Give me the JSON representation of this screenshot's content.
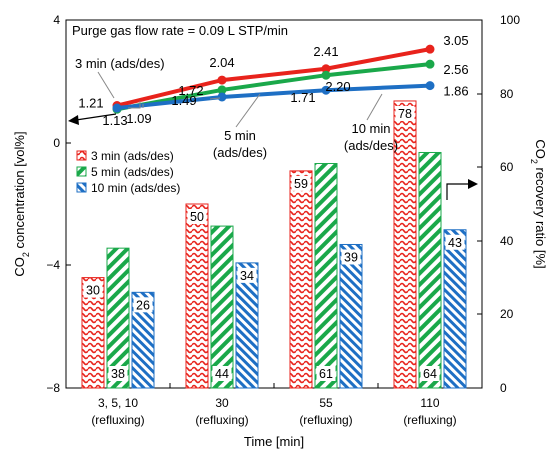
{
  "chart_data": {
    "type": "bar+line",
    "title": "Purge gas flow rate = 0.09 L STP/min",
    "xlabel": "Time [min]",
    "ylabel_left": "CO2 concentration [vol%]",
    "ylabel_right": "CO2 recovery ratio [%]",
    "ylim_left": [
      -8,
      4
    ],
    "ylim_right": [
      0,
      100
    ],
    "yticks_left": [
      "−8",
      "−4",
      "0",
      "4"
    ],
    "yticks_right": [
      "0",
      "20",
      "40",
      "60",
      "80",
      "100"
    ],
    "categories": [
      {
        "line1": "3,  5, 10",
        "line2": "(refluxing)"
      },
      {
        "line1": "30",
        "line2": "(refluxing)"
      },
      {
        "line1": "55",
        "line2": "(refluxing)"
      },
      {
        "line1": "110",
        "line2": "(refluxing)"
      }
    ],
    "bar_series": [
      {
        "name": "3 min (ads/des)",
        "color": "#e8231c",
        "pattern": "wave",
        "values": [
          30,
          50,
          59,
          78
        ],
        "labels": [
          "30",
          "50",
          "59",
          "78"
        ]
      },
      {
        "name": "5 min (ads/des)",
        "color": "#1aa84a",
        "pattern": "diag",
        "values": [
          38,
          44,
          61,
          64
        ],
        "labels": [
          "38",
          "44",
          "61",
          "64"
        ]
      },
      {
        "name": "10 min (ads/des)",
        "color": "#1e6fc4",
        "pattern": "diag",
        "values": [
          26,
          34,
          39,
          43
        ],
        "labels": [
          "26",
          "34",
          "39",
          "43"
        ]
      }
    ],
    "line_series": [
      {
        "name": "3 min (ads/des)",
        "color": "#e8231c",
        "x": [
          3,
          30,
          55,
          110
        ],
        "values": [
          1.21,
          2.04,
          2.41,
          3.05
        ],
        "labels": [
          "1.21",
          "2.04",
          "2.41",
          "3.05"
        ]
      },
      {
        "name": "5 min (ads/des)",
        "color": "#1aa84a",
        "x": [
          5,
          30,
          55,
          110
        ],
        "values": [
          1.09,
          1.72,
          2.2,
          2.56
        ],
        "labels": [
          "1.09",
          "1.72",
          "2.20",
          "2.56"
        ]
      },
      {
        "name": "10 min (ads/des)",
        "color": "#1e6fc4",
        "x": [
          10,
          30,
          55,
          110
        ],
        "values": [
          1.13,
          1.49,
          1.71,
          1.86
        ],
        "labels": [
          "1.13",
          "1.49",
          "1.71",
          "1.86"
        ]
      }
    ],
    "annotations": {
      "line_3min": "3 min (ads/des)",
      "line_5min_a": "5 min",
      "line_5min_b": "(ads/des)",
      "line_10min_a": "10 min",
      "line_10min_b": "(ads/des)"
    },
    "legend": {
      "placement": "upper-left inside plot",
      "entries": [
        "3 min (ads/des)",
        "5 min (ads/des)",
        "10 min (ads/des)"
      ]
    },
    "grid": false
  }
}
